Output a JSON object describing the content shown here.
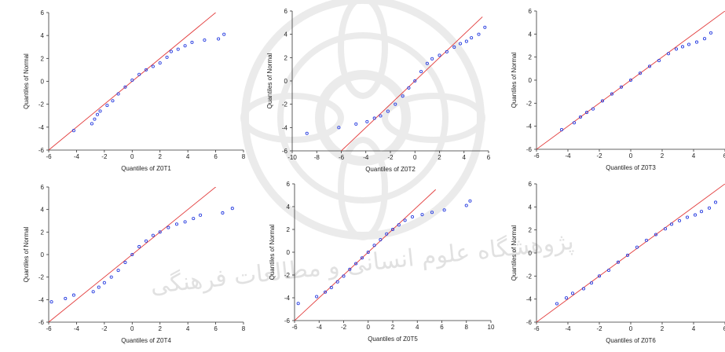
{
  "watermark": {
    "text": "پژوهشگاه علوم انسانی و مطالعات فرهنگی"
  },
  "chart_data": [
    {
      "type": "scatter",
      "xlabel": "Quantiles of Z0T1",
      "ylabel": "Quantiles of Normal",
      "xlim": [
        -6,
        8
      ],
      "ylim": [
        -6,
        6
      ],
      "xticks": [
        "-6",
        "-4",
        "-2",
        "0",
        "2",
        "4",
        "6",
        "8"
      ],
      "yticks": [
        "-6",
        "-4",
        "-2",
        "0",
        "2",
        "4",
        "6"
      ],
      "reference_line": {
        "from": [
          -6,
          -6
        ],
        "to": [
          7.5,
          7.5
        ]
      },
      "points": [
        [
          -4.2,
          -4.3
        ],
        [
          -2.9,
          -3.7
        ],
        [
          -2.7,
          -3.3
        ],
        [
          -2.5,
          -2.9
        ],
        [
          -2.3,
          -2.6
        ],
        [
          -1.8,
          -2.1
        ],
        [
          -1.4,
          -1.7
        ],
        [
          -1.0,
          -1.1
        ],
        [
          -0.5,
          -0.5
        ],
        [
          0.0,
          0.1
        ],
        [
          0.5,
          0.6
        ],
        [
          1.0,
          1.0
        ],
        [
          1.5,
          1.3
        ],
        [
          2.0,
          1.6
        ],
        [
          2.5,
          2.1
        ],
        [
          2.8,
          2.6
        ],
        [
          3.3,
          2.8
        ],
        [
          3.8,
          3.1
        ],
        [
          4.3,
          3.4
        ],
        [
          5.2,
          3.6
        ],
        [
          6.2,
          3.7
        ],
        [
          6.6,
          4.1
        ]
      ]
    },
    {
      "type": "scatter",
      "xlabel": "Quantiles of Z0T2",
      "ylabel": "Quantiles of Normal",
      "xlim": [
        -10,
        6
      ],
      "ylim": [
        -6,
        6
      ],
      "xticks": [
        "-10",
        "-8",
        "-6",
        "-4",
        "-2",
        "0",
        "2",
        "4",
        "6"
      ],
      "yticks": [
        "-6",
        "-4",
        "-2",
        "0",
        "2",
        "4",
        "6"
      ],
      "reference_line": {
        "from": [
          -6,
          -6
        ],
        "to": [
          5.5,
          5.5
        ]
      },
      "points": [
        [
          -8.8,
          -4.5
        ],
        [
          -6.2,
          -4.0
        ],
        [
          -4.8,
          -3.7
        ],
        [
          -3.9,
          -3.5
        ],
        [
          -3.3,
          -3.2
        ],
        [
          -2.8,
          -3.0
        ],
        [
          -2.2,
          -2.6
        ],
        [
          -1.6,
          -2.0
        ],
        [
          -1.0,
          -1.3
        ],
        [
          -0.5,
          -0.6
        ],
        [
          0.0,
          0.0
        ],
        [
          0.5,
          0.8
        ],
        [
          1.0,
          1.5
        ],
        [
          1.4,
          1.9
        ],
        [
          2.0,
          2.2
        ],
        [
          2.6,
          2.5
        ],
        [
          3.2,
          2.9
        ],
        [
          3.7,
          3.2
        ],
        [
          4.2,
          3.4
        ],
        [
          4.6,
          3.7
        ],
        [
          5.2,
          4.0
        ],
        [
          5.7,
          4.6
        ]
      ]
    },
    {
      "type": "scatter",
      "xlabel": "Quantiles of Z0T3",
      "ylabel": "Quantiles of Normal",
      "xlim": [
        -6,
        6
      ],
      "ylim": [
        -6,
        6
      ],
      "xticks": [
        "-6",
        "-4",
        "-2",
        "0",
        "2",
        "4",
        "6"
      ],
      "yticks": [
        "-6",
        "-4",
        "-2",
        "0",
        "2",
        "4",
        "6"
      ],
      "reference_line": {
        "from": [
          -6,
          -6
        ],
        "to": [
          6,
          6
        ]
      },
      "points": [
        [
          -4.4,
          -4.3
        ],
        [
          -3.6,
          -3.7
        ],
        [
          -3.2,
          -3.2
        ],
        [
          -2.8,
          -2.8
        ],
        [
          -2.4,
          -2.5
        ],
        [
          -1.8,
          -1.8
        ],
        [
          -1.2,
          -1.2
        ],
        [
          -0.6,
          -0.6
        ],
        [
          0.0,
          0.0
        ],
        [
          0.6,
          0.6
        ],
        [
          1.2,
          1.2
        ],
        [
          1.8,
          1.7
        ],
        [
          2.4,
          2.3
        ],
        [
          2.9,
          2.7
        ],
        [
          3.3,
          2.9
        ],
        [
          3.7,
          3.1
        ],
        [
          4.2,
          3.3
        ],
        [
          4.7,
          3.6
        ],
        [
          5.1,
          4.1
        ]
      ]
    },
    {
      "type": "scatter",
      "xlabel": "Quantiles of Z0T4",
      "ylabel": "Quantiles of Normal",
      "xlim": [
        -6,
        8
      ],
      "ylim": [
        -6,
        6
      ],
      "xticks": [
        "-6",
        "-4",
        "-2",
        "0",
        "2",
        "4",
        "6",
        "8"
      ],
      "yticks": [
        "-6",
        "-4",
        "-2",
        "0",
        "2",
        "4",
        "6"
      ],
      "reference_line": {
        "from": [
          -6,
          -6
        ],
        "to": [
          7.8,
          7.8
        ]
      },
      "points": [
        [
          -5.8,
          -4.2
        ],
        [
          -4.8,
          -3.9
        ],
        [
          -4.2,
          -3.6
        ],
        [
          -2.8,
          -3.3
        ],
        [
          -2.4,
          -2.9
        ],
        [
          -2.0,
          -2.5
        ],
        [
          -1.5,
          -2.0
        ],
        [
          -1.0,
          -1.4
        ],
        [
          -0.5,
          -0.7
        ],
        [
          0.0,
          0.0
        ],
        [
          0.5,
          0.7
        ],
        [
          1.0,
          1.2
        ],
        [
          1.5,
          1.7
        ],
        [
          2.0,
          2.0
        ],
        [
          2.6,
          2.4
        ],
        [
          3.2,
          2.7
        ],
        [
          3.8,
          2.9
        ],
        [
          4.4,
          3.2
        ],
        [
          4.9,
          3.5
        ],
        [
          6.5,
          3.7
        ],
        [
          7.2,
          4.1
        ]
      ]
    },
    {
      "type": "scatter",
      "xlabel": "Quantiles of Z0T5",
      "ylabel": "Quantiles of Normal",
      "xlim": [
        -6,
        10
      ],
      "ylim": [
        -6,
        6
      ],
      "xticks": [
        "-6",
        "-4",
        "-2",
        "0",
        "2",
        "4",
        "6",
        "8",
        "10"
      ],
      "yticks": [
        "-6",
        "-4",
        "-2",
        "0",
        "2",
        "4",
        "6"
      ],
      "reference_line": {
        "from": [
          -6,
          -6
        ],
        "to": [
          5.5,
          5.5
        ]
      },
      "points": [
        [
          -5.7,
          -4.5
        ],
        [
          -4.2,
          -3.9
        ],
        [
          -3.5,
          -3.5
        ],
        [
          -3.0,
          -3.1
        ],
        [
          -2.5,
          -2.6
        ],
        [
          -2.0,
          -2.1
        ],
        [
          -1.5,
          -1.5
        ],
        [
          -1.0,
          -1.0
        ],
        [
          -0.5,
          -0.5
        ],
        [
          0.0,
          0.0
        ],
        [
          0.5,
          0.6
        ],
        [
          1.0,
          1.1
        ],
        [
          1.5,
          1.6
        ],
        [
          2.0,
          2.0
        ],
        [
          2.5,
          2.4
        ],
        [
          3.0,
          2.8
        ],
        [
          3.6,
          3.1
        ],
        [
          4.4,
          3.3
        ],
        [
          5.2,
          3.5
        ],
        [
          6.2,
          3.7
        ],
        [
          8.0,
          4.1
        ],
        [
          8.3,
          4.5
        ]
      ]
    },
    {
      "type": "scatter",
      "xlabel": "Quantiles of Z0T6",
      "ylabel": "Quantiles of Normal",
      "xlim": [
        -6,
        6
      ],
      "ylim": [
        -6,
        6
      ],
      "xticks": [
        "-6",
        "-4",
        "-2",
        "0",
        "2",
        "4",
        "6"
      ],
      "yticks": [
        "-6",
        "-4",
        "-2",
        "0",
        "2",
        "4",
        "6"
      ],
      "reference_line": {
        "from": [
          -6,
          -6
        ],
        "to": [
          6,
          6
        ]
      },
      "points": [
        [
          -4.7,
          -4.4
        ],
        [
          -4.1,
          -3.9
        ],
        [
          -3.7,
          -3.5
        ],
        [
          -3.0,
          -3.1
        ],
        [
          -2.5,
          -2.6
        ],
        [
          -2.0,
          -2.0
        ],
        [
          -1.4,
          -1.5
        ],
        [
          -0.8,
          -0.8
        ],
        [
          -0.2,
          -0.2
        ],
        [
          0.4,
          0.5
        ],
        [
          1.0,
          1.1
        ],
        [
          1.6,
          1.6
        ],
        [
          2.2,
          2.1
        ],
        [
          2.6,
          2.5
        ],
        [
          3.1,
          2.8
        ],
        [
          3.6,
          3.1
        ],
        [
          4.1,
          3.3
        ],
        [
          4.5,
          3.6
        ],
        [
          5.0,
          3.9
        ],
        [
          5.4,
          4.4
        ]
      ]
    }
  ]
}
